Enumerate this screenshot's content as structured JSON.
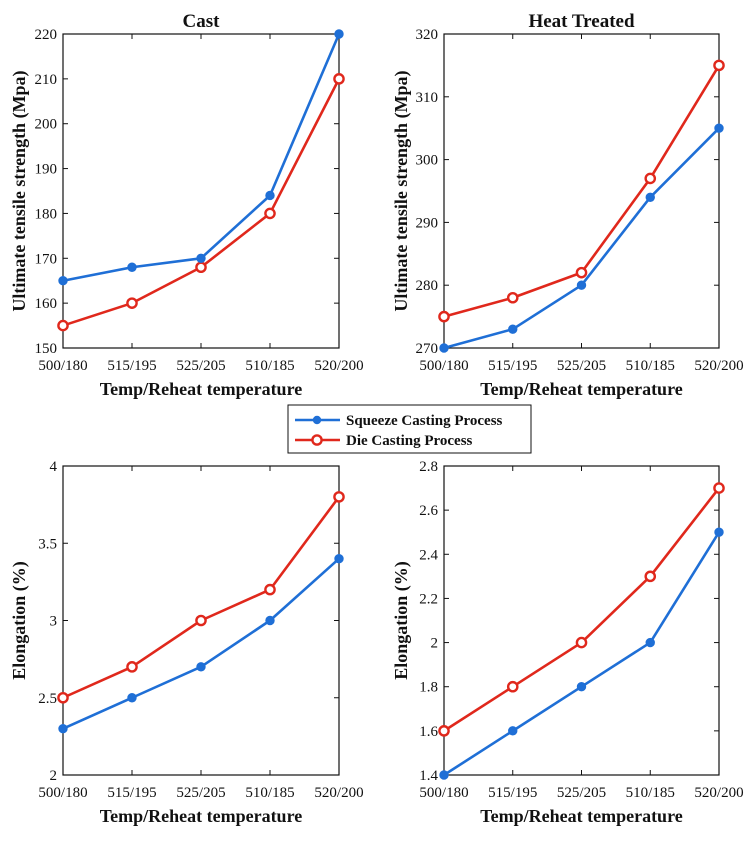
{
  "chart_data": [
    {
      "type": "line",
      "title": "Cast",
      "xlabel": "Temp/Reheat temperature",
      "ylabel": "Ultimate tensile strength (Mpa)",
      "categories": [
        "500/180",
        "515/195",
        "525/205",
        "510/185",
        "520/200"
      ],
      "ylim": [
        150,
        220
      ],
      "yticks": [
        150,
        160,
        170,
        180,
        190,
        200,
        210,
        220
      ],
      "ytick_labels": [
        "150",
        "160",
        "170",
        "180",
        "190",
        "200",
        "210",
        "220"
      ],
      "series": [
        {
          "name": "Squeeze Casting Process",
          "values": [
            165,
            168,
            170,
            184,
            220
          ]
        },
        {
          "name": "Die Casting Process",
          "values": [
            155,
            160,
            168,
            180,
            210
          ]
        }
      ]
    },
    {
      "type": "line",
      "title": "Heat Treated",
      "xlabel": "Temp/Reheat temperature",
      "ylabel": "Ultimate tensile strength (Mpa)",
      "categories": [
        "500/180",
        "515/195",
        "525/205",
        "510/185",
        "520/200"
      ],
      "ylim": [
        270,
        320
      ],
      "yticks": [
        270,
        280,
        290,
        300,
        310,
        320
      ],
      "ytick_labels": [
        "270",
        "280",
        "290",
        "300",
        "310",
        "320"
      ],
      "series": [
        {
          "name": "Squeeze Casting Process",
          "values": [
            270,
            273,
            280,
            294,
            305
          ]
        },
        {
          "name": "Die Casting Process",
          "values": [
            275,
            278,
            282,
            297,
            315
          ]
        }
      ]
    },
    {
      "type": "line",
      "title": "",
      "xlabel": "Temp/Reheat temperature",
      "ylabel": "Elongation (%)",
      "categories": [
        "500/180",
        "515/195",
        "525/205",
        "510/185",
        "520/200"
      ],
      "ylim": [
        2,
        4
      ],
      "yticks": [
        2,
        2.5,
        3,
        3.5,
        4
      ],
      "ytick_labels": [
        "2",
        "2.5",
        "3",
        "3.5",
        "4"
      ],
      "series": [
        {
          "name": "Squeeze Casting Process",
          "values": [
            2.3,
            2.5,
            2.7,
            3.0,
            3.4
          ]
        },
        {
          "name": "Die Casting Process",
          "values": [
            2.5,
            2.7,
            3.0,
            3.2,
            3.8
          ]
        }
      ]
    },
    {
      "type": "line",
      "title": "",
      "xlabel": "Temp/Reheat temperature",
      "ylabel": "Elongation (%)",
      "categories": [
        "500/180",
        "515/195",
        "525/205",
        "510/185",
        "520/200"
      ],
      "ylim": [
        1.4,
        2.8
      ],
      "yticks": [
        1.4,
        1.6,
        1.8,
        2.0,
        2.2,
        2.4,
        2.6,
        2.8
      ],
      "ytick_labels": [
        "1.4",
        "1.6",
        "1.8",
        "2",
        "2.2",
        "2.4",
        "2.6",
        "2.8"
      ],
      "series": [
        {
          "name": "Squeeze Casting Process",
          "values": [
            1.4,
            1.6,
            1.8,
            2.0,
            2.5
          ]
        },
        {
          "name": "Die Casting Process",
          "values": [
            1.6,
            1.8,
            2.0,
            2.3,
            2.7
          ]
        }
      ]
    }
  ],
  "legend": {
    "items": [
      {
        "label": "Squeeze Casting Process",
        "color": "#1f6fd6",
        "marker": "filled-circle"
      },
      {
        "label": "Die Casting Process",
        "color": "#e0281c",
        "marker": "open-circle"
      }
    ]
  },
  "colors": {
    "squeeze": "#1f6fd6",
    "die": "#e0281c",
    "axis": "#111111"
  }
}
